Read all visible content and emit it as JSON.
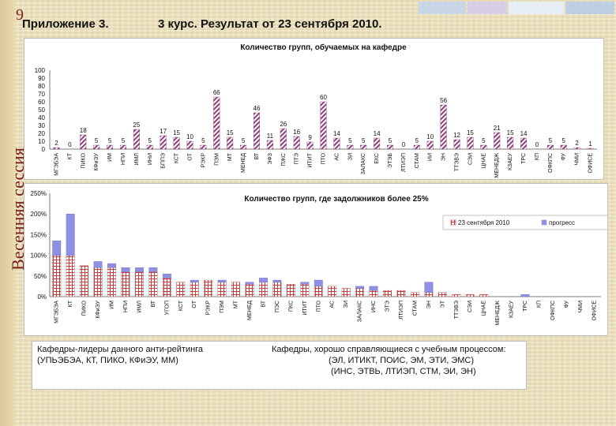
{
  "slide": {
    "number": "9",
    "side_title": "Весенняя сессия",
    "appendix": "Приложение 3.",
    "header": "3 курс.  Результат от 23 сентября 2010.",
    "colors": {
      "deco": [
        "#c9d6e8",
        "#d7cfe6",
        "#e7eef6",
        "#bfcfe3"
      ]
    }
  },
  "chart_data": [
    {
      "type": "bar",
      "title": "Количество групп, обучаемых на кафедре",
      "ylim": [
        0,
        100
      ],
      "yticks": [
        "100",
        "90",
        "80",
        "70",
        "60",
        "50",
        "40",
        "30",
        "20",
        "10",
        "0"
      ],
      "categories": [
        "МГЭБЭА",
        "КТ",
        "ПИКО",
        "КФиЭУ",
        "ИМ",
        "НПИ",
        "ИМЛ",
        "ИНИ",
        "БППЭ",
        "КСТ",
        "ОТ",
        "РЭКР",
        "ПЭМ",
        "МТ",
        "МЕНЕД",
        "ВТ",
        "ЭФЗ",
        "ПЖС",
        "ПТЭ",
        "ИТИТ",
        "ПТО",
        "АС",
        "ЗИ",
        "ЗАЛАКС",
        "ЕКС",
        "ЭТЭБ",
        "ЛТИЭП",
        "СТАМ",
        "ИИ",
        "ЭН",
        "ТТЭВЭ",
        "СЭИ",
        "ЦНАЕ",
        "МЕНЕДЖ",
        "КЗАЕУ",
        "ТРС",
        "КП",
        "ОФКПС",
        "ФУ",
        "ЧМИ",
        "ОФИСЕ"
      ],
      "values": [
        2,
        0,
        18,
        5,
        5,
        5,
        25,
        5,
        17,
        15,
        10,
        5,
        66,
        15,
        5,
        46,
        11,
        26,
        16,
        9,
        60,
        14,
        5,
        5,
        14,
        5,
        0,
        5,
        10,
        56,
        12,
        15,
        5,
        21,
        15,
        14,
        0,
        5,
        5,
        2,
        1
      ],
      "labels": [
        "2",
        "0",
        "18",
        "5",
        "5",
        "5",
        "25",
        "5",
        "17",
        "15",
        "10",
        "5",
        "66",
        "15",
        "5",
        "46",
        "11",
        "26",
        "16",
        "9",
        "60",
        "14",
        "5",
        "5",
        "14",
        "5",
        "0",
        "5",
        "10",
        "56",
        "12",
        "15",
        "5",
        "21",
        "15",
        "14",
        "0",
        "5",
        "5",
        "2",
        "1"
      ],
      "special_labels": {
        "MGEBEA_top": ""
      },
      "bar_color": "#8e3e7c"
    },
    {
      "type": "bar",
      "title": "Количество групп, где задолжников более 25%",
      "ylim": [
        0,
        250
      ],
      "yticks": [
        "250%",
        "200%",
        "150%",
        "100%",
        "50%",
        "0%"
      ],
      "categories": [
        "МГЭБЭА",
        "КТ",
        "ПИКО",
        "КФиЭУ",
        "ИМ",
        "НПИ",
        "ИМЛ",
        "ВТ",
        "УГОП",
        "КСТ",
        "ОТ",
        "РЭКР",
        "ПЭМ",
        "МТ",
        "МЕНЕД",
        "ВТ",
        "ПЭС",
        "ПКС",
        "ИТИТ",
        "ПТО",
        "АС",
        "ЗИ",
        "ЗАЛАКС",
        "ИНС",
        "ЭТЭ",
        "ЛТИЭП",
        "СТАМ",
        "ЭН",
        "ЭТ",
        "ТТЭВЭ",
        "СЭИ",
        "ЦНАЕ",
        "МЕНЕДЖ",
        "КЗАЕУ",
        "ТРС",
        "КП",
        "ОФКПС",
        "ФУ",
        "ЧМИ",
        "ОФИСЕ"
      ],
      "series": [
        {
          "name": "23 сентября 2010",
          "values": [
            100,
            100,
            75,
            70,
            70,
            60,
            60,
            60,
            45,
            35,
            35,
            40,
            35,
            35,
            30,
            35,
            35,
            30,
            30,
            25,
            25,
            20,
            20,
            15,
            15,
            15,
            10,
            10,
            10,
            5,
            5,
            5,
            0,
            0,
            0,
            0,
            0,
            0,
            0,
            0
          ],
          "color": "#c33f3f"
        },
        {
          "name": "прогресс",
          "values": [
            35,
            100,
            0,
            15,
            10,
            10,
            10,
            10,
            10,
            0,
            5,
            0,
            5,
            0,
            5,
            10,
            5,
            0,
            5,
            15,
            0,
            0,
            5,
            10,
            0,
            0,
            0,
            25,
            0,
            0,
            0,
            0,
            0,
            0,
            5,
            0,
            0,
            0,
            0,
            0
          ],
          "color": "#8f8fe3"
        }
      ],
      "legend": [
        "23 сентября 2010",
        "прогресс"
      ]
    }
  ],
  "notes": {
    "left_line1": "Кафедры-лидеры данного анти-рейтинга",
    "left_line2": "(УПЬЭБЭА, КТ, ПИКО, КФиЭУ, ММ)",
    "right_line1": "Кафедры, хорошо справляющиеся с учебным процессом:",
    "right_line2": "(ЭЛ, ИТИКТ, ПОИС, ЭМ, ЭТИ, ЭМС)",
    "right_line3": "(ИНС, ЭТВЬ, ЛТИЭП, СТМ, ЭИ, ЭН)"
  }
}
